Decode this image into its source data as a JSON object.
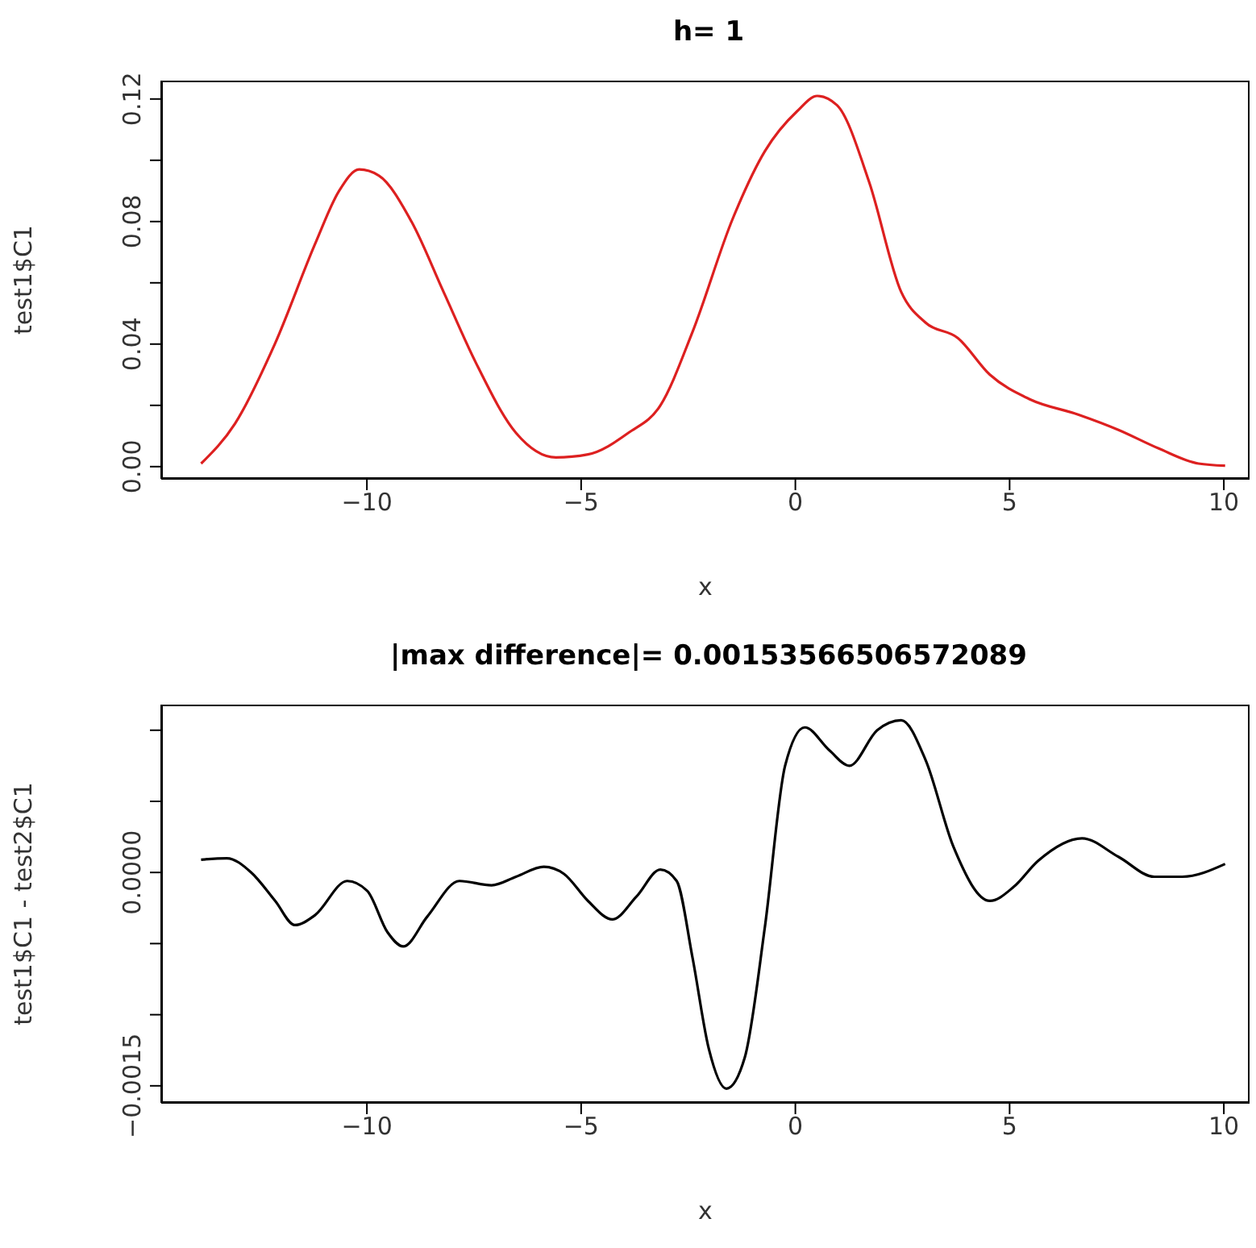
{
  "chart_data": [
    {
      "type": "line",
      "title": "h= 1",
      "xlabel": "x",
      "ylabel": "test1$C1",
      "xlim": [
        -14.8,
        10.6
      ],
      "xticks": [
        -10,
        -5,
        0,
        5,
        10
      ],
      "ylim": [
        -0.004,
        0.126
      ],
      "yticks": [
        {
          "value": 0,
          "label": "0.00"
        },
        {
          "value": 0.02,
          "label": null
        },
        {
          "value": 0.04,
          "label": "0.04"
        },
        {
          "value": 0.06,
          "label": null
        },
        {
          "value": 0.08,
          "label": "0.08"
        },
        {
          "value": 0.1,
          "label": null
        },
        {
          "value": 0.12,
          "label": "0.12"
        }
      ],
      "marker": "none",
      "line_style": "solid",
      "series": [
        {
          "color": "#dd2020",
          "x": [
            -13.87,
            -13.08,
            -12.15,
            -11.2,
            -10.65,
            -10.18,
            -9.72,
            -8.96,
            -8.21,
            -7.46,
            -6.52,
            -5.59,
            -4.84,
            -3.9,
            -3.15,
            -2.4,
            -1.46,
            -0.71,
            0.04,
            0.51,
            0.97,
            1.72,
            2.47,
            3.04,
            3.79,
            4.54,
            5.47,
            6.6,
            7.54,
            8.47,
            9.41,
            10.03
          ],
          "values": [
            0.001,
            0.014,
            0.04,
            0.073,
            0.09,
            0.097,
            0.095,
            0.08,
            0.057,
            0.034,
            0.011,
            0.003,
            0.004,
            0.011,
            0.02,
            0.044,
            0.081,
            0.103,
            0.116,
            0.121,
            0.118,
            0.093,
            0.057,
            0.047,
            0.042,
            0.03,
            0.022,
            0.017,
            0.012,
            0.006,
            0.001,
            0.0003
          ]
        }
      ]
    },
    {
      "type": "line",
      "title": "|max difference|= 0.00153566506572089",
      "xlabel": "x",
      "ylabel": "test1$C1 - test2$C1",
      "xlim": [
        -14.8,
        10.6
      ],
      "xticks": [
        -10,
        -5,
        0,
        5,
        10
      ],
      "ylim": [
        -0.00162,
        0.00118
      ],
      "yticks": [
        {
          "value": -0.0015,
          "label": "−0.0015"
        },
        {
          "value": -0.001,
          "label": null
        },
        {
          "value": -0.0005,
          "label": null
        },
        {
          "value": 0,
          "label": "0.0000"
        },
        {
          "value": 0.0005,
          "label": null
        },
        {
          "value": 0.001,
          "label": null
        }
      ],
      "marker": "none",
      "line_style": "solid",
      "series": [
        {
          "color": "#000000",
          "x": [
            -13.87,
            -13.27,
            -12.7,
            -12.14,
            -11.68,
            -11.21,
            -10.46,
            -9.99,
            -9.52,
            -9.15,
            -8.59,
            -7.84,
            -7.09,
            -6.52,
            -5.87,
            -5.4,
            -4.84,
            -4.27,
            -3.71,
            -3.15,
            -2.77,
            -2.4,
            -2.02,
            -1.61,
            -1.18,
            -0.71,
            -0.24,
            0.22,
            0.79,
            1.26,
            1.91,
            2.47,
            3.04,
            3.69,
            4.54,
            5.1,
            5.66,
            6.69,
            7.54,
            8.38,
            9.03,
            10.03
          ],
          "values": [
            9e-05,
            0.0001,
            0.0,
            -0.0002,
            -0.00037,
            -0.0003,
            -6e-05,
            -0.00013,
            -0.00042,
            -0.00052,
            -0.00031,
            -6e-05,
            -9e-05,
            -3e-05,
            4e-05,
            -1e-05,
            -0.0002,
            -0.00033,
            -0.00017,
            2e-05,
            -6e-05,
            -0.0006,
            -0.00124,
            -0.00152,
            -0.0013,
            -0.00038,
            0.00075,
            0.00102,
            0.00086,
            0.00075,
            0.001,
            0.00107,
            0.00079,
            0.00018,
            -0.0002,
            -0.0001,
            8e-05,
            0.00024,
            0.00011,
            -3e-05,
            -3e-05,
            6e-05
          ]
        }
      ]
    }
  ]
}
